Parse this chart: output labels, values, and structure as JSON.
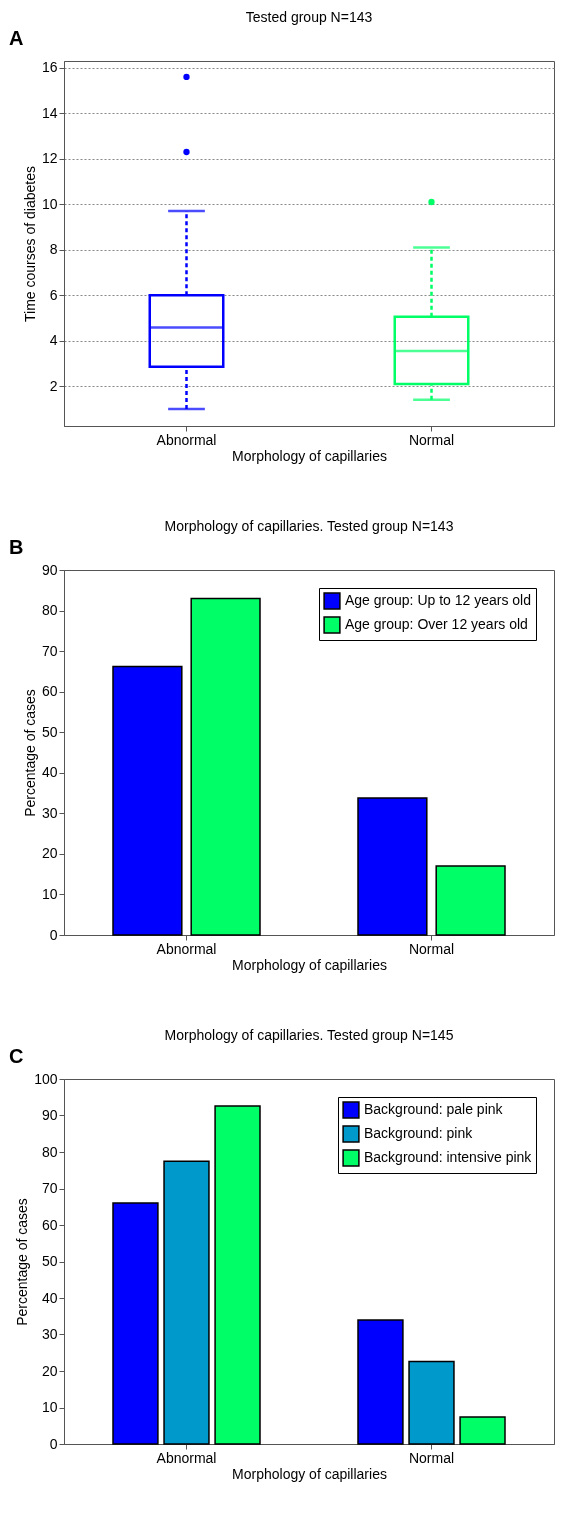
{
  "chart_data": [
    {
      "type": "box",
      "title": "Tested group N=143",
      "xlabel": "Morphology of capillaries",
      "ylabel": "Time courses of diabetes",
      "categories": [
        "Abnormal",
        "Normal"
      ],
      "boxes": [
        {
          "low": 1.0,
          "q1": 2.85,
          "median": 4.58,
          "q3": 6.0,
          "high": 9.7,
          "outliers": [
            12.3,
            15.6
          ]
        },
        {
          "low": 1.4,
          "q1": 2.1,
          "median": 3.55,
          "q3": 5.05,
          "high": 8.1,
          "outliers": [
            10.1
          ]
        }
      ],
      "colors": [
        "#0000ff",
        "#00ff66"
      ],
      "ylim": [
        0.25,
        16.3
      ],
      "yticks": [
        2,
        4,
        6,
        8,
        10,
        12,
        14,
        16
      ],
      "grid": "y",
      "annotations": [
        "A"
      ]
    },
    {
      "type": "bar",
      "title": "Morphology of capillaries. Tested group N=143",
      "xlabel": "Morphology of capillaries",
      "ylabel": "Percentage of cases",
      "categories": [
        "Abnormal",
        "Normal"
      ],
      "series": [
        {
          "name": "Age group: Up to 12 years old",
          "color": "#0000ff",
          "values": [
            66.2,
            33.8
          ]
        },
        {
          "name": "Age group: Over 12 years old",
          "color": "#00ff66",
          "values": [
            83.0,
            17.0
          ]
        }
      ],
      "ylim": [
        0,
        90
      ],
      "yticks": [
        0,
        10,
        20,
        30,
        40,
        50,
        60,
        70,
        80,
        90
      ],
      "legend": "top right",
      "annotations": [
        "B"
      ]
    },
    {
      "type": "bar",
      "title": "Morphology of capillaries. Tested group N=145",
      "xlabel": "Morphology of capillaries",
      "ylabel": "Percentage of cases",
      "categories": [
        "Abnormal",
        "Normal"
      ],
      "series": [
        {
          "name": "Background: pale pink",
          "color": "#0000ff",
          "values": [
            66.0,
            34.0
          ]
        },
        {
          "name": "Background: pink",
          "color": "#0099cc",
          "values": [
            77.5,
            22.6
          ]
        },
        {
          "name": "Background: intensive pink",
          "color": "#00ff66",
          "values": [
            92.6,
            7.4
          ]
        }
      ],
      "ylim": [
        0,
        100
      ],
      "yticks": [
        0,
        10,
        20,
        30,
        40,
        50,
        60,
        70,
        80,
        90,
        100
      ],
      "legend": "top right",
      "annotations": [
        "C"
      ]
    }
  ]
}
